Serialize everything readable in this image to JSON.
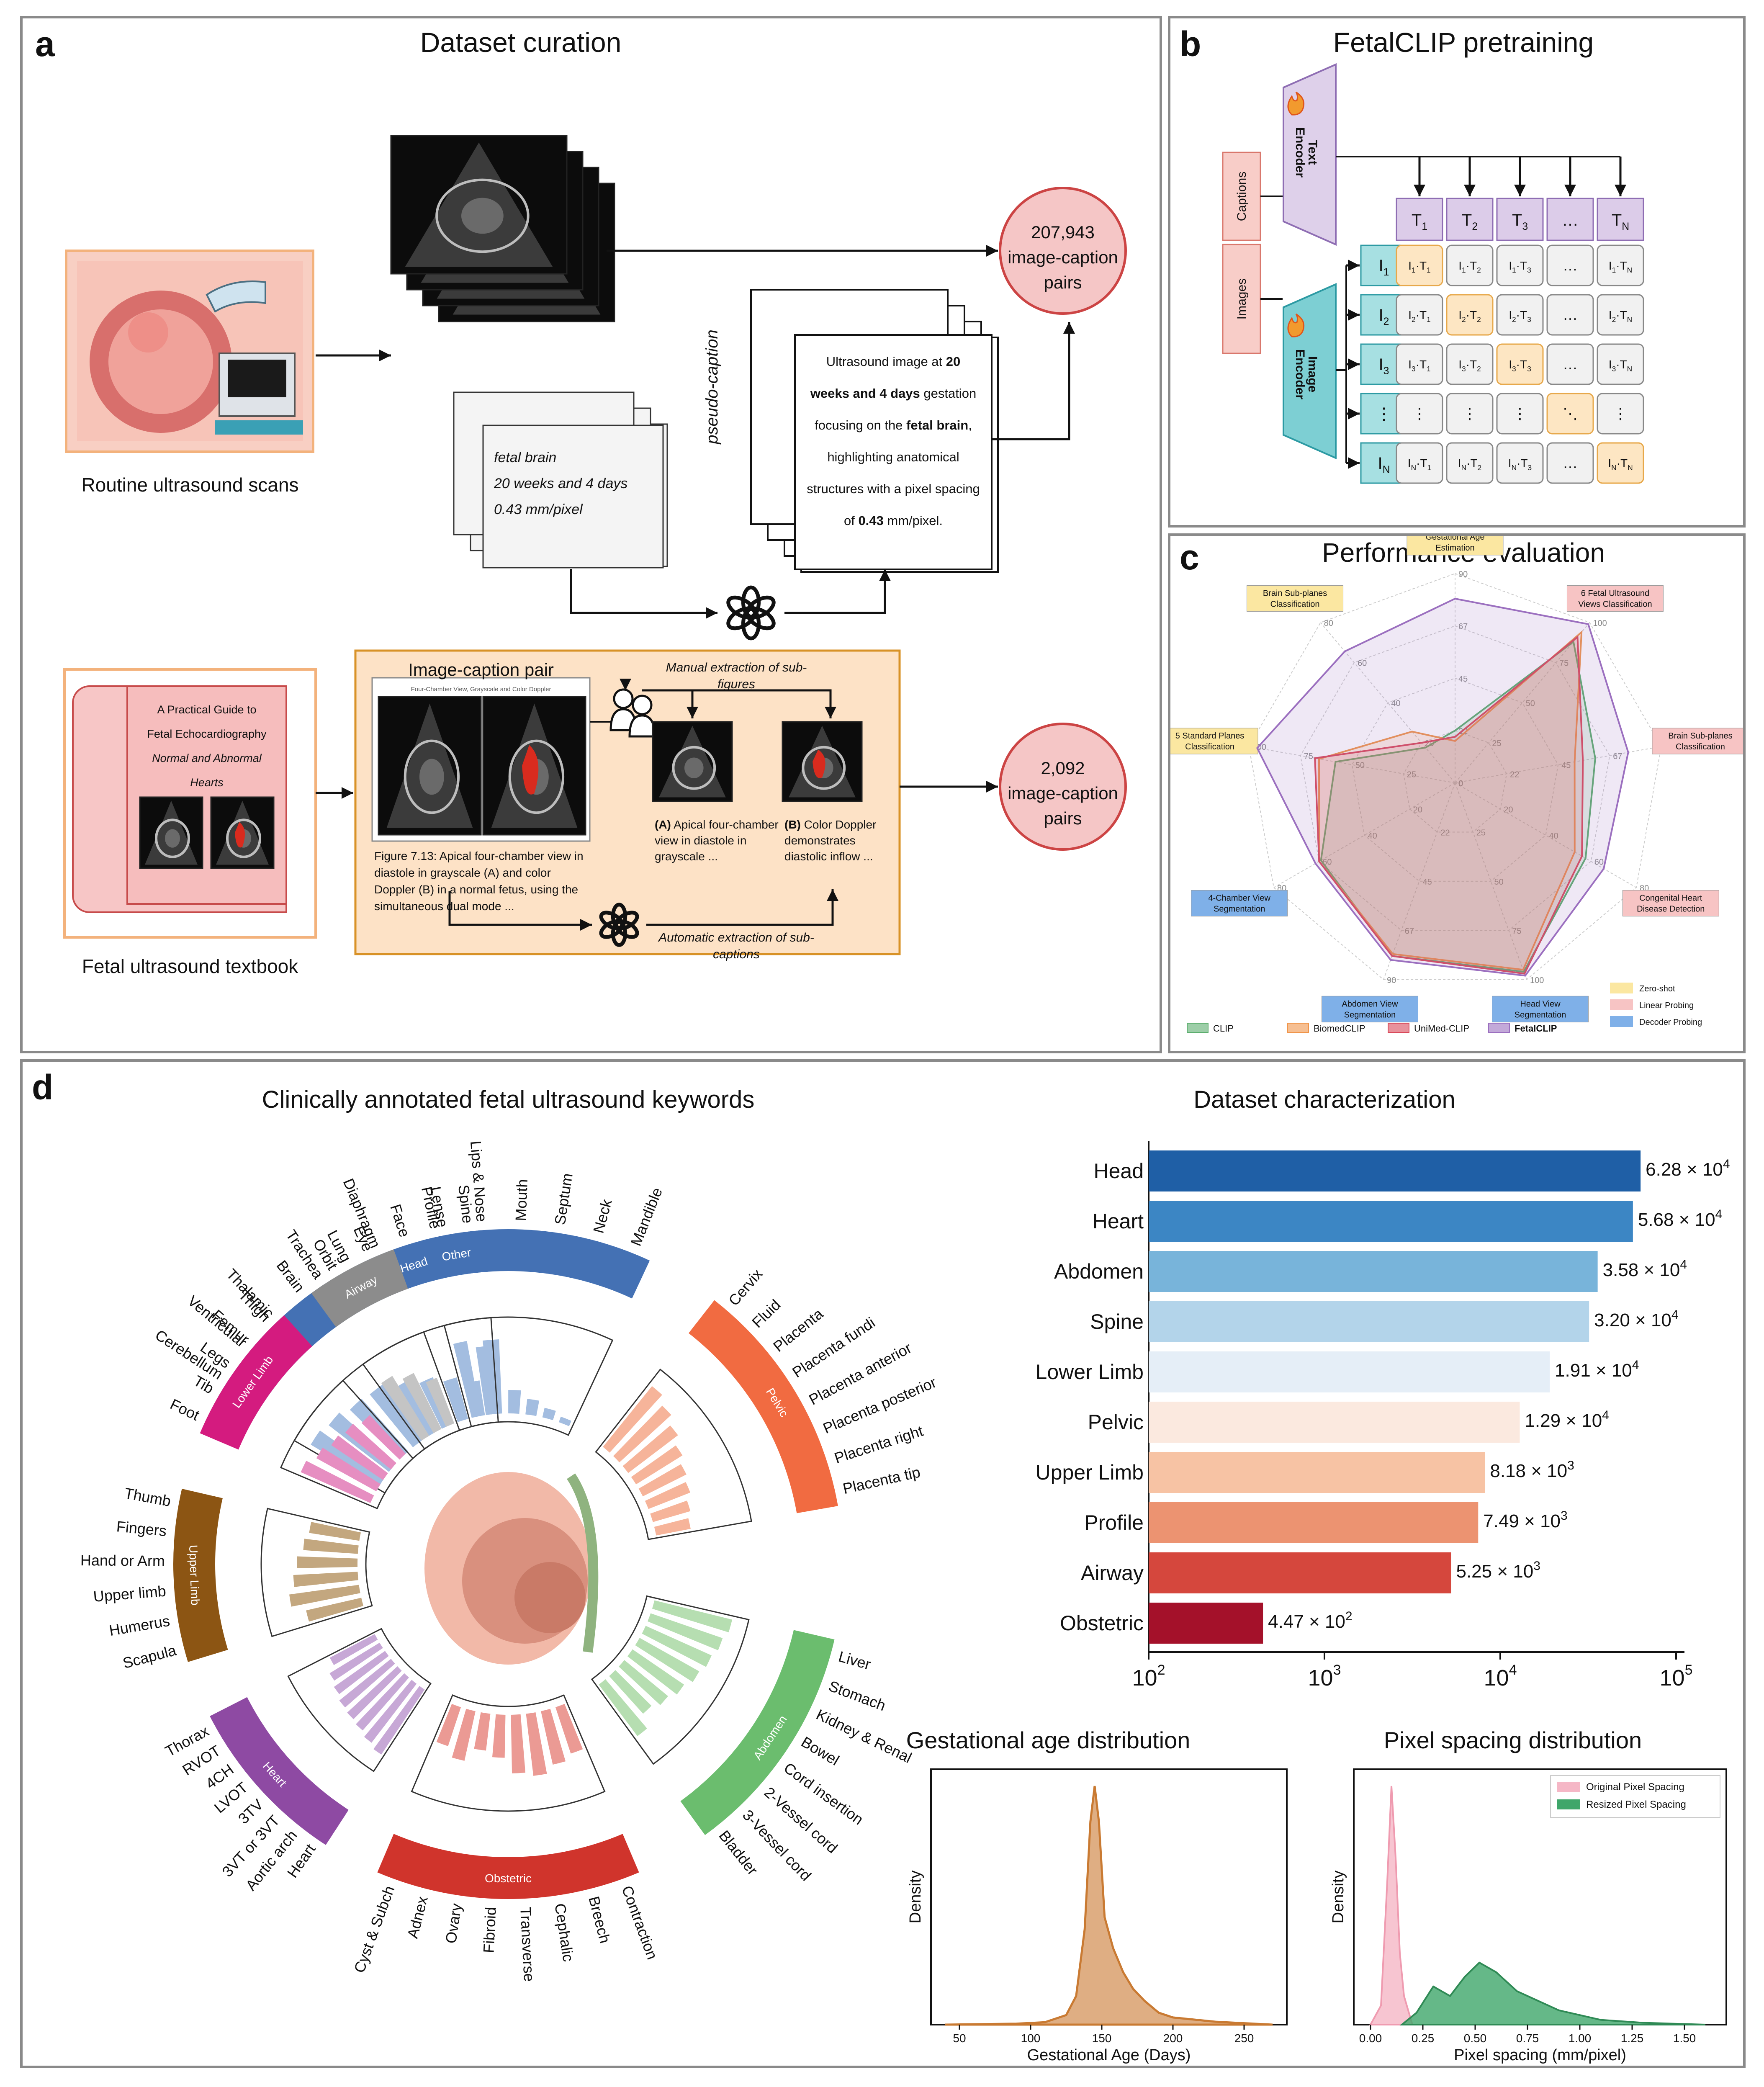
{
  "panel_a": {
    "label": "a",
    "title": "Dataset curation",
    "routine_label": "Routine ultrasound scans",
    "textbook_label": "Fetal ultrasound textbook",
    "top_pairs_count": "207,943",
    "top_pairs_line2": "image-caption",
    "top_pairs_line3": "pairs",
    "bottom_pairs_count": "2,092",
    "bottom_pairs_line2": "image-caption",
    "bottom_pairs_line3": "pairs",
    "meta_lines": [
      "fetal brain",
      "20 weeks and 4 days",
      "0.43 mm/pixel"
    ],
    "pseudo_caption": "pseudo-caption",
    "caption_parts": [
      {
        "t": "Ultrasound image at ",
        "b": false
      },
      {
        "t": "20",
        "b": true
      },
      {
        "t": "weeks and 4 days",
        "b": true
      },
      {
        "t": " gestation",
        "b": false
      },
      {
        "t": "focusing on the ",
        "b": false
      },
      {
        "t": "fetal brain",
        "b": true
      },
      {
        "t": ",",
        "b": false
      },
      {
        "t": "highlighting anatomical",
        "b": false
      },
      {
        "t": "structures with a pixel spacing",
        "b": false
      },
      {
        "t": "of ",
        "b": false
      },
      {
        "t": "0.43",
        "b": true
      },
      {
        "t": " mm/pixel.",
        "b": false
      }
    ],
    "book_lines": [
      "A Practical Guide to",
      "Fetal Echocardiography",
      "Normal and Abnormal",
      "Hearts"
    ],
    "pair_title": "Image-caption pair",
    "pair_subtitle": "Four-Chamber View, Grayscale and Color Doppler",
    "figure_caption": [
      "Figure 7.13: Apical four-chamber view in",
      "diastole in grayscale (A) and color",
      "Doppler (B) in a normal fetus, using the",
      "simultaneous dual mode ..."
    ],
    "manual_extraction": [
      "Manual extraction of sub-",
      "figures"
    ],
    "automatic_extraction": [
      "Automatic extraction of sub-",
      "captions"
    ],
    "sub_caption_a": [
      {
        "b": "(A)",
        "t": " Apical four-chamber"
      },
      {
        "t": "view in diastole in"
      },
      {
        "t": "grayscale ..."
      }
    ],
    "sub_caption_b": [
      {
        "b": "(B)",
        "t": " Color Doppler"
      },
      {
        "t": "demonstrates"
      },
      {
        "t": "diastolic inflow ..."
      }
    ]
  },
  "panel_b": {
    "label": "b",
    "title": "FetalCLIP pretraining",
    "text_encoder": [
      "Text",
      "Encoder"
    ],
    "image_encoder": [
      "Image",
      "Encoder"
    ],
    "captions_label": "Captions",
    "images_label": "Images",
    "t_tokens": [
      [
        "T",
        "1"
      ],
      [
        "T",
        "2"
      ],
      [
        "T",
        "3"
      ],
      [
        "…",
        ""
      ],
      [
        "T",
        "N"
      ]
    ],
    "i_tokens": [
      [
        "I",
        "1"
      ],
      [
        "I",
        "2"
      ],
      [
        "I",
        "3"
      ],
      [
        "⋮",
        ""
      ],
      [
        "I",
        "N"
      ]
    ],
    "matrix": [
      [
        [
          "I",
          "1",
          "T",
          "1"
        ],
        [
          "I",
          "1",
          "T",
          "2"
        ],
        [
          "I",
          "1",
          "T",
          "3"
        ],
        [
          "…"
        ],
        [
          "I",
          "1",
          "T",
          "N"
        ]
      ],
      [
        [
          "I",
          "2",
          "T",
          "1"
        ],
        [
          "I",
          "2",
          "T",
          "2"
        ],
        [
          "I",
          "2",
          "T",
          "3"
        ],
        [
          "…"
        ],
        [
          "I",
          "2",
          "T",
          "N"
        ]
      ],
      [
        [
          "I",
          "3",
          "T",
          "1"
        ],
        [
          "I",
          "3",
          "T",
          "2"
        ],
        [
          "I",
          "3",
          "T",
          "3"
        ],
        [
          "…"
        ],
        [
          "I",
          "3",
          "T",
          "N"
        ]
      ],
      [
        [
          "⋮"
        ],
        [
          "⋮"
        ],
        [
          "⋮"
        ],
        [
          "⋱"
        ],
        [
          "⋮"
        ]
      ],
      [
        [
          "I",
          "N",
          "T",
          "1"
        ],
        [
          "I",
          "N",
          "T",
          "2"
        ],
        [
          "I",
          "N",
          "T",
          "3"
        ],
        [
          "…"
        ],
        [
          "I",
          "N",
          "T",
          "N"
        ]
      ]
    ]
  },
  "panel_c": {
    "label": "c",
    "title": "Performance evaluation",
    "axes": [
      {
        "name": [
          "Gestational Age",
          "Estimation"
        ],
        "mode": "zero",
        "ticks": [
          "0",
          "22",
          "45",
          "67",
          "90"
        ]
      },
      {
        "name": [
          "6 Fetal Ultrasound",
          "Views Classification"
        ],
        "mode": "linear",
        "ticks": [
          "0",
          "25",
          "50",
          "75",
          "100"
        ]
      },
      {
        "name": [
          "Brain Sub-planes",
          "Classification"
        ],
        "mode": "linear",
        "ticks": [
          "0",
          "22",
          "45",
          "67",
          "90"
        ]
      },
      {
        "name": [
          "Congenital Heart",
          "Disease Detection"
        ],
        "mode": "linear",
        "ticks": [
          "0",
          "20",
          "40",
          "60",
          "80"
        ]
      },
      {
        "name": [
          "Head View",
          "Segmentation"
        ],
        "mode": "decoder",
        "ticks": [
          "0",
          "25",
          "50",
          "75",
          "100"
        ]
      },
      {
        "name": [
          "Abdomen View",
          "Segmentation"
        ],
        "mode": "decoder",
        "ticks": [
          "0",
          "22",
          "45",
          "67",
          "90"
        ]
      },
      {
        "name": [
          "4-Chamber View",
          "Segmentation"
        ],
        "mode": "decoder",
        "ticks": [
          "0",
          "20",
          "40",
          "60",
          "80"
        ]
      },
      {
        "name": [
          "5 Standard Planes",
          "Classification"
        ],
        "mode": "zero",
        "ticks": [
          "0",
          "25",
          "50",
          "75",
          "100"
        ]
      },
      {
        "name": [
          "Brain Sub-planes",
          "Classification"
        ],
        "mode": "zero",
        "ticks": [
          "0",
          "20",
          "40",
          "60",
          "80"
        ]
      }
    ],
    "series": [
      {
        "name": "CLIP",
        "color": "#5cae6e",
        "values": [
          25,
          88,
          68,
          72,
          96,
          88,
          74,
          58,
          22
        ]
      },
      {
        "name": "BiomedCLIP",
        "color": "#f0954a",
        "values": [
          20,
          94,
          58,
          66,
          95,
          87,
          75,
          66,
          32
        ]
      },
      {
        "name": "UniMed-CLIP",
        "color": "#d9495a",
        "values": [
          22,
          91,
          62,
          70,
          97,
          88,
          75,
          68,
          25
        ]
      },
      {
        "name": "FetalCLIP",
        "color": "#9b6fbf",
        "values": [
          88,
          99,
          84,
          82,
          98,
          90,
          77,
          96,
          82
        ]
      }
    ],
    "mode_legend": [
      {
        "name": "Zero-shot",
        "color": "#fbe7a1"
      },
      {
        "name": "Linear Probing",
        "color": "#f7c4c4"
      },
      {
        "name": "Decoder Probing",
        "color": "#7fb0e8"
      }
    ]
  },
  "panel_d": {
    "label": "d",
    "keywords_title": "Clinically annotated fetal ultrasound keywords",
    "categories": [
      {
        "name": "Head",
        "color": "#4471b4",
        "light": "#a3bde0",
        "a0": -60,
        "a1": 25,
        "words": [
          "Cerebellum",
          "Ventricular",
          "Thalamic",
          "Brain",
          "Orbit",
          "Eye",
          "Face",
          "Lense",
          "Lips & Nose",
          "Mouth",
          "Septum",
          "Neck",
          "Mandible"
        ],
        "vals": [
          4.1,
          3.9,
          3.6,
          3.5,
          3.0,
          2.6,
          2.2,
          1.8,
          3.8,
          1.2,
          0.8,
          0.5,
          0.3
        ]
      },
      {
        "name": "Pelvic",
        "color": "#f16b41",
        "light": "#f6b49a",
        "a0": 38,
        "a1": 80,
        "words": [
          "Cervix",
          "Fluid",
          "Placenta",
          "Placenta fundi",
          "Placenta anterior",
          "Placenta posterior",
          "Placenta right",
          "Placenta tip"
        ],
        "vals": [
          4.0,
          3.6,
          3.2,
          2.8,
          2.5,
          2.3,
          2.0,
          1.8
        ]
      },
      {
        "name": "Abdomen",
        "color": "#6bbd6e",
        "light": "#b6deb1",
        "a0": 103,
        "a1": 144,
        "words": [
          "Liver",
          "Stomach",
          "Kidney & Renal",
          "Bowel",
          "Cord insertion",
          "2-Vessel cord",
          "3-Vessel cord",
          "Bladder"
        ],
        "vals": [
          4.1,
          3.9,
          3.7,
          3.5,
          3.2,
          2.9,
          2.6,
          3.3
        ]
      },
      {
        "name": "Obstetric",
        "color": "#d0342c",
        "light": "#eb9a94",
        "a0": 157,
        "a1": 203,
        "words": [
          "Contraction",
          "Breech",
          "Cephalic",
          "Transverse",
          "Fibroid",
          "Ovary",
          "Adnex",
          "Cyst & Subch"
        ],
        "vals": [
          2.5,
          2.8,
          3.2,
          3.0,
          2.2,
          1.9,
          2.6,
          2.1
        ]
      },
      {
        "name": "Heart",
        "color": "#8e4aa3",
        "light": "#c7a8d6",
        "a0": 213,
        "a1": 243,
        "words": [
          "Heart",
          "Aortic arch",
          "3VT or 3VT",
          "3TV",
          "LVOT",
          "4CH",
          "RVOT",
          "Thorax"
        ],
        "vals": [
          4.0,
          3.8,
          3.6,
          3.5,
          3.4,
          3.2,
          3.0,
          2.6
        ]
      },
      {
        "name": "Upper Limb",
        "color": "#8c5513",
        "light": "#c3a77f",
        "a0": 253,
        "a1": 283,
        "words": [
          "Scapula",
          "Humerus",
          "Upper limb",
          "Hand or Arm",
          "Fingers",
          "Thumb"
        ],
        "vals": [
          2.9,
          3.6,
          3.3,
          3.1,
          2.8,
          2.6
        ]
      },
      {
        "name": "Lower Limb",
        "color": "#d41b7f",
        "light": "#e68ec1",
        "a0": 293,
        "a1": 318,
        "words": [
          "Foot",
          "Tib",
          "Legs",
          "Femur",
          "Thigh"
        ],
        "vals": [
          3.9,
          3.5,
          3.2,
          3.0,
          2.7
        ]
      },
      {
        "name": "Airway",
        "color": "#8c8c8c",
        "light": "#c4c4c4",
        "a0": 324,
        "a1": 340,
        "words": [
          "Trachea",
          "Lung",
          "Diaphragm"
        ],
        "vals": [
          3.6,
          3.2,
          2.5
        ]
      },
      {
        "name": "Other",
        "color": "#4471b4",
        "light": "#a3bde0",
        "a0": 345,
        "a1": 356,
        "words": [
          "Profile",
          "Spine"
        ],
        "vals": [
          3.9,
          3.5
        ]
      }
    ],
    "ring_ticks": [
      "10",
      "2",
      "10",
      "3",
      "10",
      "4",
      "10",
      "5"
    ],
    "char_title": "Dataset characterization",
    "char_bars": [
      {
        "name": "Head",
        "value": 62800,
        "label": "6.28 × 10",
        "exp": "4",
        "color": "#1f5fa6"
      },
      {
        "name": "Heart",
        "value": 56800,
        "label": "5.68 × 10",
        "exp": "4",
        "color": "#3c86c4"
      },
      {
        "name": "Abdomen",
        "value": 35800,
        "label": "3.58 × 10",
        "exp": "4",
        "color": "#78b4da"
      },
      {
        "name": "Spine",
        "value": 32000,
        "label": "3.20 × 10",
        "exp": "4",
        "color": "#b3d4ea"
      },
      {
        "name": "Lower Limb",
        "value": 19100,
        "label": "1.91 × 10",
        "exp": "4",
        "color": "#e5eef7"
      },
      {
        "name": "Pelvic",
        "value": 12900,
        "label": "1.29 × 10",
        "exp": "4",
        "color": "#fbe9df"
      },
      {
        "name": "Upper Limb",
        "value": 8180,
        "label": "8.18 × 10",
        "exp": "3",
        "color": "#f7c3a4"
      },
      {
        "name": "Profile",
        "value": 7490,
        "label": "7.49 × 10",
        "exp": "3",
        "color": "#ec9371"
      },
      {
        "name": "Airway",
        "value": 5250,
        "label": "5.25 × 10",
        "exp": "3",
        "color": "#d5473d"
      },
      {
        "name": "Obstetric",
        "value": 447,
        "label": "4.47 × 10",
        "exp": "2",
        "color": "#a4112a"
      }
    ],
    "char_ticks": [
      {
        "v": 100,
        "e": "2"
      },
      {
        "v": 1000,
        "e": "3"
      },
      {
        "v": 10000,
        "e": "4"
      },
      {
        "v": 100000,
        "e": "5"
      }
    ],
    "ga_title": "Gestational age distribution",
    "ga_xlabel": "Gestational Age (Days)",
    "ga_ylabel": "Density",
    "ga_ticks": [
      "50",
      "100",
      "150",
      "200",
      "250"
    ],
    "ps_title": "Pixel spacing distribution",
    "ps_xlabel": "Pixel spacing (mm/pixel)",
    "ps_ylabel": "Density",
    "ps_ticks": [
      "0.00",
      "0.25",
      "0.50",
      "0.75",
      "1.00",
      "1.25",
      "1.50"
    ],
    "ps_legend": [
      {
        "name": "Original Pixel Spacing",
        "color": "#f5b7c6"
      },
      {
        "name": "Resized Pixel Spacing",
        "color": "#3fa66a"
      }
    ]
  }
}
